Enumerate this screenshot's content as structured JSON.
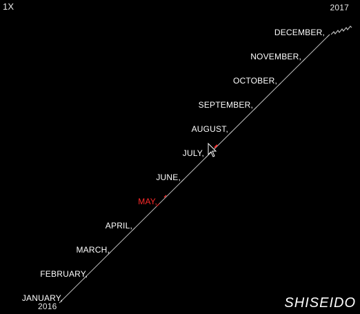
{
  "zoom_label": "1X",
  "year_end": "2017",
  "year_start": "2016",
  "months": [
    {
      "label": "JANUARY",
      "highlight": false
    },
    {
      "label": "FEBRUARY",
      "highlight": false
    },
    {
      "label": "MARCH",
      "highlight": false
    },
    {
      "label": "APRIL",
      "highlight": false
    },
    {
      "label": "MAY",
      "highlight": true
    },
    {
      "label": "JUNE",
      "highlight": false
    },
    {
      "label": "JULY",
      "highlight": false
    },
    {
      "label": "AUGUST",
      "highlight": false
    },
    {
      "label": "SEPTEMBER",
      "highlight": false
    },
    {
      "label": "OCTOBER",
      "highlight": false
    },
    {
      "label": "NOVEMBER",
      "highlight": false
    },
    {
      "label": "DECEMBER",
      "highlight": false
    }
  ],
  "brand": "SHISEIDO",
  "colors": {
    "line": "#bfbfbf",
    "highlight": "#ff2a2a",
    "background": "#000000"
  },
  "icons": {
    "cursor": "arrow-cursor-icon",
    "scribble": "scribble-icon"
  }
}
